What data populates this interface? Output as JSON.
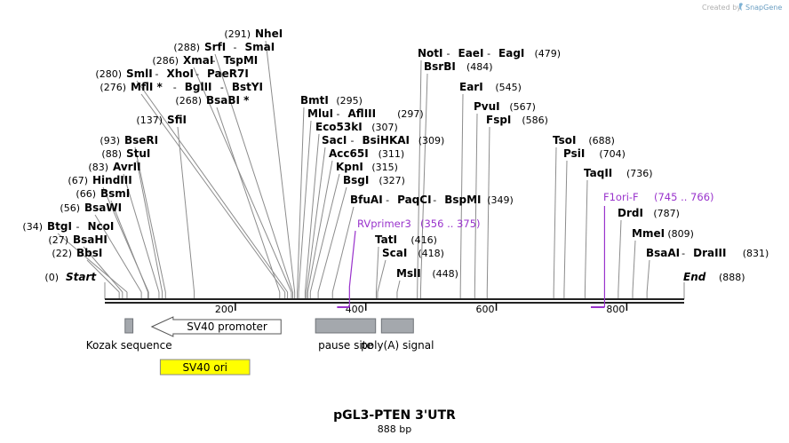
{
  "app": {
    "credit": "Created by",
    "brand": "SnapGene"
  },
  "map": {
    "title": "pGL3-PTEN 3'UTR",
    "length_label": "888 bp",
    "total_bp": 888,
    "backbone_color": "#222222",
    "primer_color": "#9933cc",
    "axis_ticks": [
      {
        "value": 200,
        "label": "200"
      },
      {
        "value": 400,
        "label": "400"
      },
      {
        "value": 600,
        "label": "600"
      },
      {
        "value": 800,
        "label": "800"
      }
    ],
    "end_markers": [
      {
        "label": "Start",
        "pos_text": "(0)",
        "bp": 0
      },
      {
        "label": "End",
        "pos_text": "(888)",
        "bp": 888
      }
    ],
    "sites": [
      {
        "names": [
          "BbsI"
        ],
        "pos_text": "(22)",
        "bp": 22
      },
      {
        "names": [
          "BsaHI"
        ],
        "pos_text": "(27)",
        "bp": 27
      },
      {
        "names": [
          "BtgI",
          "NcoI"
        ],
        "pos_text": "(34)",
        "bp": 34
      },
      {
        "names": [
          "BsaWI"
        ],
        "pos_text": "(56)",
        "bp": 56
      },
      {
        "names": [
          "BsmI"
        ],
        "pos_text": "(66)",
        "bp": 66
      },
      {
        "names": [
          "HindIII"
        ],
        "pos_text": "(67)",
        "bp": 67
      },
      {
        "names": [
          "AvrII"
        ],
        "pos_text": "(83)",
        "bp": 83
      },
      {
        "names": [
          "StuI"
        ],
        "pos_text": "(88)",
        "bp": 88
      },
      {
        "names": [
          "BseRI"
        ],
        "pos_text": "(93)",
        "bp": 93
      },
      {
        "names": [
          "SfiI"
        ],
        "pos_text": "(137)",
        "bp": 137
      },
      {
        "names": [
          "BsaBI *"
        ],
        "pos_text": "(268)",
        "bp": 268
      },
      {
        "names": [
          "MflI *",
          "BglII",
          "BstYI"
        ],
        "pos_text": "(276)",
        "bp": 276
      },
      {
        "names": [
          "SmlI",
          "XhoI",
          "PaeR7I"
        ],
        "pos_text": "(280)",
        "bp": 280
      },
      {
        "names": [
          "XmaI",
          "TspMI"
        ],
        "pos_text": "(286)",
        "bp": 286
      },
      {
        "names": [
          "SrfI",
          "SmaI"
        ],
        "pos_text": "(288)",
        "bp": 288
      },
      {
        "names": [
          "NheI"
        ],
        "pos_text": "(291)",
        "bp": 291
      },
      {
        "names": [
          "BmtI"
        ],
        "pos_text": "(295)",
        "bp": 295
      },
      {
        "names": [
          "MluI",
          "AflIII"
        ],
        "pos_text": "(297)",
        "bp": 297
      },
      {
        "names": [
          "Eco53kI"
        ],
        "pos_text": "(307)",
        "bp": 307
      },
      {
        "names": [
          "SacI",
          "BsiHKAI"
        ],
        "pos_text": "(309)",
        "bp": 309
      },
      {
        "names": [
          "Acc65I"
        ],
        "pos_text": "(311)",
        "bp": 311
      },
      {
        "names": [
          "KpnI"
        ],
        "pos_text": "(315)",
        "bp": 315
      },
      {
        "names": [
          "BsgI"
        ],
        "pos_text": "(327)",
        "bp": 327
      },
      {
        "names": [
          "BfuAI",
          "PaqCI",
          "BspMI"
        ],
        "pos_text": "(349)",
        "bp": 349
      },
      {
        "names": [
          "ScaI"
        ],
        "pos_text": "(418)",
        "bp": 418
      },
      {
        "names": [
          "TatI"
        ],
        "pos_text": "(416)",
        "bp": 416
      },
      {
        "names": [
          "MslI"
        ],
        "pos_text": "(448)",
        "bp": 448
      },
      {
        "names": [
          "NotI",
          "EaeI",
          "EagI"
        ],
        "pos_text": "(479)",
        "bp": 479
      },
      {
        "names": [
          "BsrBI"
        ],
        "pos_text": "(484)",
        "bp": 484
      },
      {
        "names": [
          "EarI"
        ],
        "pos_text": "(545)",
        "bp": 545
      },
      {
        "names": [
          "PvuI"
        ],
        "pos_text": "(567)",
        "bp": 567
      },
      {
        "names": [
          "FspI"
        ],
        "pos_text": "(586)",
        "bp": 586
      },
      {
        "names": [
          "TsoI"
        ],
        "pos_text": "(688)",
        "bp": 688
      },
      {
        "names": [
          "PsiI"
        ],
        "pos_text": "(704)",
        "bp": 704
      },
      {
        "names": [
          "TaqII"
        ],
        "pos_text": "(736)",
        "bp": 736
      },
      {
        "names": [
          "DrdI"
        ],
        "pos_text": "(787)",
        "bp": 787
      },
      {
        "names": [
          "MmeI"
        ],
        "pos_text": "(809)",
        "bp": 809
      },
      {
        "names": [
          "BsaAI",
          "DraIII"
        ],
        "pos_text": "(831)",
        "bp": 831
      }
    ],
    "primers": [
      {
        "name": "RVprimer3",
        "range": "(356 .. 375)",
        "start": 356,
        "end": 375,
        "direction": "reverse"
      },
      {
        "name": "F1ori-F",
        "range": "(745 .. 766)",
        "start": 745,
        "end": 766,
        "direction": "forward"
      }
    ],
    "features": [
      {
        "label": "Kozak sequence",
        "start": 31,
        "end": 43,
        "kind": "misc",
        "color": "#a4a8ad"
      },
      {
        "label": "SV40 promoter",
        "start": 72,
        "end": 270,
        "kind": "promoter",
        "direction": "reverse",
        "color": "#ffffff"
      },
      {
        "label": "pause site",
        "start": 323,
        "end": 415,
        "kind": "misc",
        "color": "#a4a8ad"
      },
      {
        "label": "poly(A) signal",
        "start": 424,
        "end": 473,
        "kind": "misc",
        "color": "#a4a8ad"
      },
      {
        "label": "SV40 ori",
        "start": 85,
        "end": 222,
        "kind": "origin",
        "color": "#ffff00"
      }
    ]
  }
}
